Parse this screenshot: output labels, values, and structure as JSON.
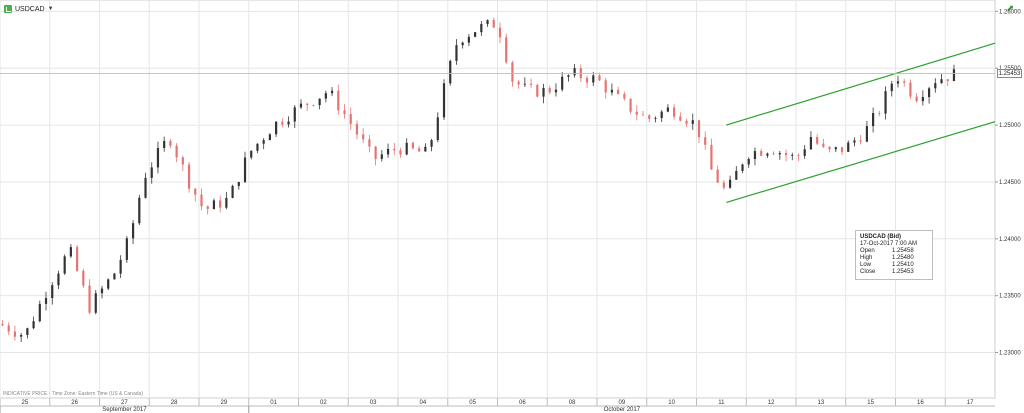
{
  "header": {
    "symbol": "USDCAD",
    "dropdown_icon": "chevron-down-icon",
    "symbol_icon": "chart-icon",
    "expand_icon": "expand-arrow-icon"
  },
  "footer_note": "INDICATIVE PRICE - Time Zone: Eastern Time (US & Canada)",
  "tooltip": {
    "title": "USDCAD (Bid)",
    "datetime": "17-Oct-2017 7:00 AM",
    "rows": [
      {
        "label": "Open",
        "value": "1.25458"
      },
      {
        "label": "High",
        "value": "1.25480"
      },
      {
        "label": "Low",
        "value": "1.25410"
      },
      {
        "label": "Close",
        "value": "1.25453"
      }
    ]
  },
  "colors": {
    "up": "#333333",
    "down": "#e57373",
    "trend": "#2ca02c",
    "grid": "#e6e6e6",
    "current_price_line": "#f4a4a4"
  },
  "chart_data": {
    "type": "candlestick",
    "title": "",
    "xlabel": "",
    "ylabel": "",
    "ylim": [
      1.226,
      1.261
    ],
    "y_ticks": [
      "1.26000",
      "1.25500",
      "1.25000",
      "1.24500",
      "1.24000",
      "1.23500",
      "1.23000"
    ],
    "y_tick_values": [
      1.26,
      1.255,
      1.25,
      1.245,
      1.24,
      1.235,
      1.23
    ],
    "current_price": 1.25453,
    "current_price_label": "1.25453",
    "day_labels": [
      "25",
      "26",
      "27",
      "28",
      "29",
      "01",
      "02",
      "03",
      "04",
      "05",
      "06",
      "08",
      "09",
      "10",
      "11",
      "12",
      "13",
      "15",
      "16",
      "17"
    ],
    "month_labels": [
      {
        "label": "September 2017",
        "start_day": 0,
        "end_day": 4
      },
      {
        "label": "October 2017",
        "start_day": 5,
        "end_day": 19
      }
    ],
    "day_anchors": [
      {
        "day": 0,
        "price": 1.2325
      },
      {
        "day": 0.5,
        "price": 1.2315
      },
      {
        "day": 1,
        "price": 1.236
      },
      {
        "day": 1.4,
        "price": 1.239
      },
      {
        "day": 1.8,
        "price": 1.234
      },
      {
        "day": 2.3,
        "price": 1.237
      },
      {
        "day": 2.6,
        "price": 1.24
      },
      {
        "day": 2.9,
        "price": 1.2455
      },
      {
        "day": 3.4,
        "price": 1.249
      },
      {
        "day": 3.8,
        "price": 1.245
      },
      {
        "day": 4.1,
        "price": 1.2425
      },
      {
        "day": 4.6,
        "price": 1.2435
      },
      {
        "day": 5,
        "price": 1.2475
      },
      {
        "day": 5.5,
        "price": 1.25
      },
      {
        "day": 6,
        "price": 1.2515
      },
      {
        "day": 6.6,
        "price": 1.253
      },
      {
        "day": 7,
        "price": 1.2505
      },
      {
        "day": 7.5,
        "price": 1.247
      },
      {
        "day": 8,
        "price": 1.248
      },
      {
        "day": 8.6,
        "price": 1.2475
      },
      {
        "day": 9,
        "price": 1.2545
      },
      {
        "day": 9.2,
        "price": 1.2575
      },
      {
        "day": 9.6,
        "price": 1.2585
      },
      {
        "day": 10,
        "price": 1.259
      },
      {
        "day": 10.3,
        "price": 1.254
      },
      {
        "day": 10.6,
        "price": 1.253
      },
      {
        "day": 11,
        "price": 1.253
      },
      {
        "day": 11.5,
        "price": 1.2545
      },
      {
        "day": 12,
        "price": 1.254
      },
      {
        "day": 12.5,
        "price": 1.252
      },
      {
        "day": 13,
        "price": 1.2505
      },
      {
        "day": 13.5,
        "price": 1.2515
      },
      {
        "day": 14,
        "price": 1.25
      },
      {
        "day": 14.3,
        "price": 1.246
      },
      {
        "day": 14.6,
        "price": 1.244
      },
      {
        "day": 15,
        "price": 1.2475
      },
      {
        "day": 15.5,
        "price": 1.248
      },
      {
        "day": 16,
        "price": 1.247
      },
      {
        "day": 16.3,
        "price": 1.249
      },
      {
        "day": 16.6,
        "price": 1.2475
      },
      {
        "day": 17,
        "price": 1.248
      },
      {
        "day": 17.4,
        "price": 1.2495
      },
      {
        "day": 17.7,
        "price": 1.2515
      },
      {
        "day": 18,
        "price": 1.2545
      },
      {
        "day": 18.4,
        "price": 1.2525
      },
      {
        "day": 18.8,
        "price": 1.254
      },
      {
        "day": 19.2,
        "price": 1.2545
      }
    ],
    "trend_lines": [
      {
        "name": "upper-channel",
        "x": [
          14.6,
          20
        ],
        "y": [
          1.25,
          1.2572
        ]
      },
      {
        "name": "lower-channel",
        "x": [
          14.6,
          20
        ],
        "y": [
          1.2432,
          1.2503
        ]
      }
    ]
  }
}
